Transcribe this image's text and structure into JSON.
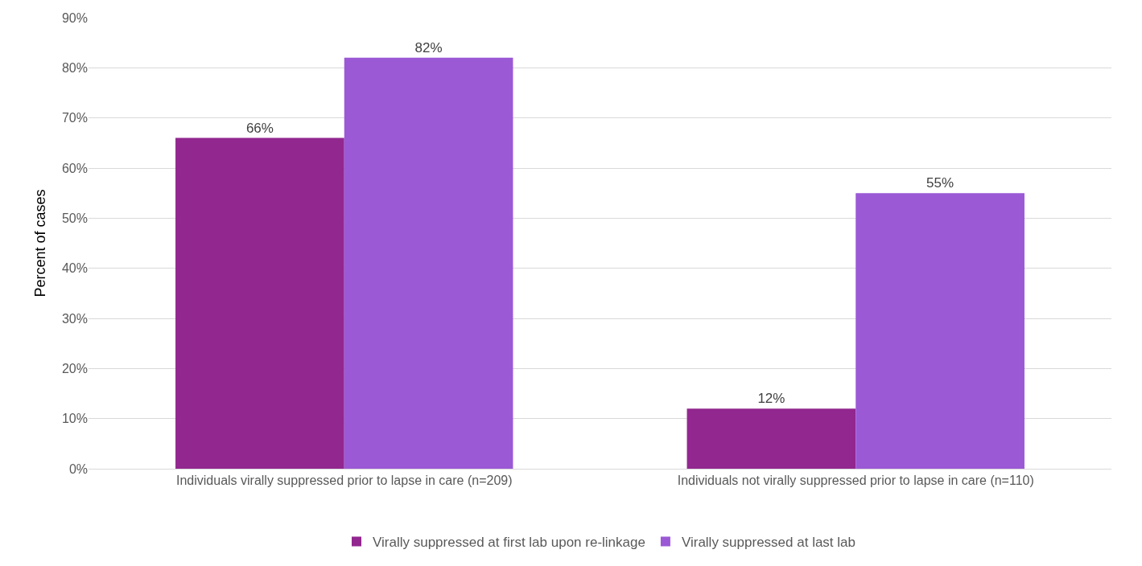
{
  "chart_data": {
    "type": "bar",
    "ylabel": "Percent of cases",
    "categories": [
      "Individuals virally suppressed prior to lapse in care (n=209)",
      "Individuals not virally suppressed prior to lapse in care (n=110)"
    ],
    "series": [
      {
        "name": "Virally suppressed at first lab upon re-linkage",
        "color": "#92278f",
        "values": [
          66,
          12
        ],
        "value_labels": [
          "66%",
          "12%"
        ]
      },
      {
        "name": "Virally suppressed at last lab",
        "color": "#9b59d6",
        "values": [
          82,
          55
        ],
        "value_labels": [
          "82%",
          "55%"
        ]
      }
    ],
    "ylim": [
      0,
      90
    ],
    "yticks": [
      {
        "value": 0,
        "label": "0%"
      },
      {
        "value": 10,
        "label": "10%"
      },
      {
        "value": 20,
        "label": "20%"
      },
      {
        "value": 30,
        "label": "30%"
      },
      {
        "value": 40,
        "label": "40%"
      },
      {
        "value": 50,
        "label": "50%"
      },
      {
        "value": 60,
        "label": "60%"
      },
      {
        "value": 70,
        "label": "70%"
      },
      {
        "value": 80,
        "label": "80%"
      },
      {
        "value": 90,
        "label": "90%"
      }
    ],
    "grid": "y",
    "legend": "bottom"
  }
}
